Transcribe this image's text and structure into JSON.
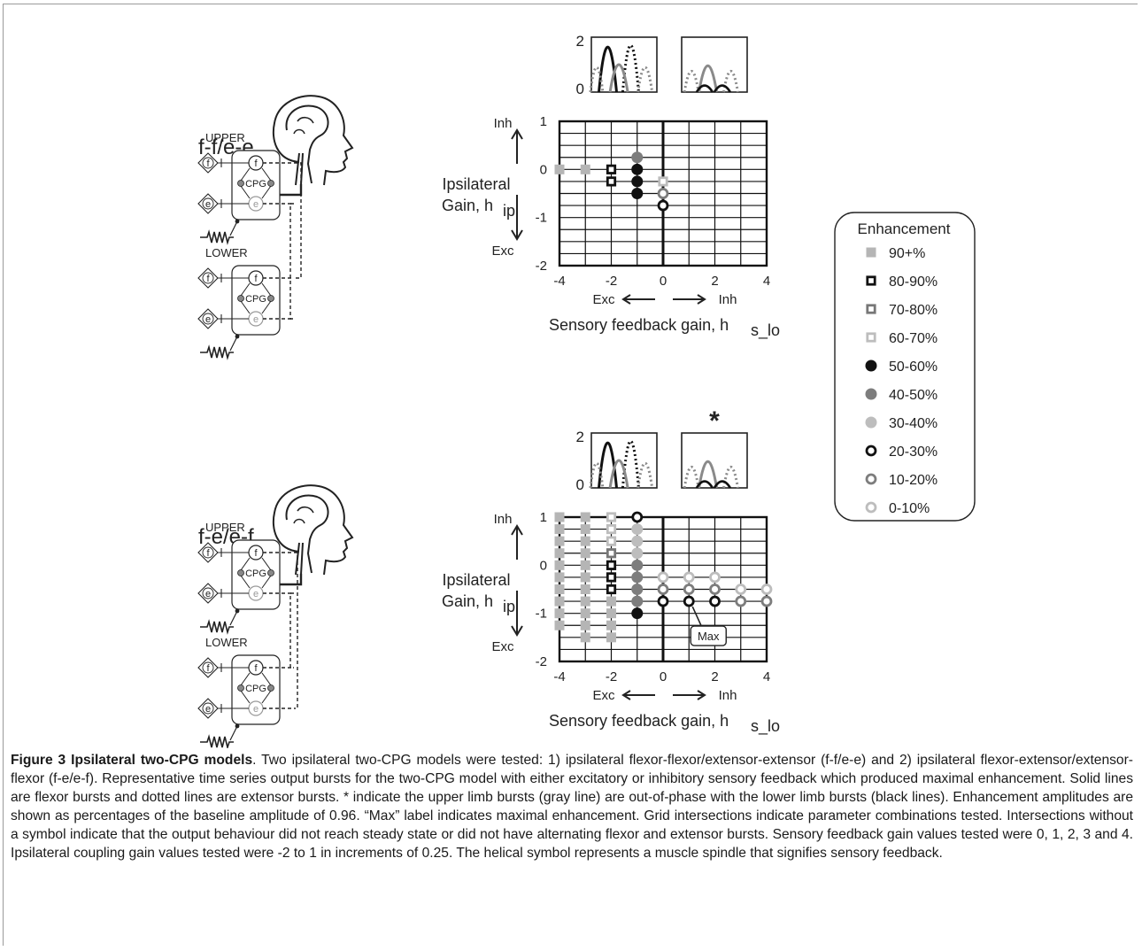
{
  "panels": [
    {
      "model_label": "f-f/e-e",
      "upper_label": "UPPER",
      "lower_label": "LOWER",
      "node_f": "f",
      "node_e": "e",
      "cpg_label": "CPG",
      "plot_y_max": "2",
      "plot_y_min": "0",
      "asterisk": "",
      "ylabel_line1": "Ipsilateral",
      "ylabel_line2": "Gain, h",
      "ylabel_sub": "ip",
      "inh_label": "Inh",
      "exc_label": "Exc",
      "xlabel": "Sensory feedback gain, h",
      "xlabel_sub": "s_lo",
      "x_exc": "Exc",
      "x_inh": "Inh",
      "xticks": [
        "-4",
        "-2",
        "0",
        "2",
        "4"
      ],
      "yticks": [
        "1",
        "0",
        "-1",
        "-2"
      ]
    },
    {
      "model_label": "f-e/e-f",
      "upper_label": "UPPER",
      "lower_label": "LOWER",
      "node_f": "f",
      "node_e": "e",
      "cpg_label": "CPG",
      "plot_y_max": "2",
      "plot_y_min": "0",
      "asterisk": "*",
      "ylabel_line1": "Ipsilateral",
      "ylabel_line2": "Gain, h",
      "ylabel_sub": "ip",
      "inh_label": "Inh",
      "exc_label": "Exc",
      "xlabel": "Sensory feedback gain, h",
      "xlabel_sub": "s_lo",
      "x_exc": "Exc",
      "x_inh": "Inh",
      "xticks": [
        "-4",
        "-2",
        "0",
        "2",
        "4"
      ],
      "yticks": [
        "1",
        "0",
        "-1",
        "-2"
      ],
      "max_label": "Max"
    }
  ],
  "legend": {
    "title": "Enhancement",
    "items": [
      {
        "label": "90+%",
        "marker": "square-filled",
        "color": "#b5b5b5"
      },
      {
        "label": "80-90%",
        "marker": "square-open",
        "color": "#111111"
      },
      {
        "label": "70-80%",
        "marker": "square-open",
        "color": "#777777"
      },
      {
        "label": "60-70%",
        "marker": "square-open",
        "color": "#bdbdbd"
      },
      {
        "label": "50-60%",
        "marker": "circle-filled",
        "color": "#111111"
      },
      {
        "label": "40-50%",
        "marker": "circle-filled",
        "color": "#7d7d7d"
      },
      {
        "label": "30-40%",
        "marker": "circle-filled",
        "color": "#bdbdbd"
      },
      {
        "label": "20-30%",
        "marker": "circle-open",
        "color": "#111111"
      },
      {
        "label": "10-20%",
        "marker": "circle-open",
        "color": "#7d7d7d"
      },
      {
        "label": "0-10%",
        "marker": "circle-open",
        "color": "#bdbdbd"
      }
    ]
  },
  "chart_data": [
    {
      "type": "scatter",
      "xlabel": "Sensory feedback gain, h_s_lo",
      "ylabel": "Ipsilateral Gain, h_ip",
      "xlim": [
        -4,
        4
      ],
      "ylim": [
        -2,
        1
      ],
      "points": [
        {
          "x": -4,
          "y": 0,
          "class": "90+%"
        },
        {
          "x": -3,
          "y": 0,
          "class": "90+%"
        },
        {
          "x": -2,
          "y": 0,
          "class": "80-90%"
        },
        {
          "x": -2,
          "y": -0.25,
          "class": "80-90%"
        },
        {
          "x": -1,
          "y": 0.25,
          "class": "40-50%"
        },
        {
          "x": -1,
          "y": 0,
          "class": "50-60%"
        },
        {
          "x": -1,
          "y": -0.25,
          "class": "50-60%"
        },
        {
          "x": -1,
          "y": -0.5,
          "class": "50-60%"
        },
        {
          "x": 0,
          "y": -0.25,
          "class": "60-70%"
        },
        {
          "x": 0,
          "y": -0.5,
          "class": "10-20%"
        },
        {
          "x": 0,
          "y": -0.75,
          "class": "20-30%"
        }
      ]
    },
    {
      "type": "scatter",
      "xlabel": "Sensory feedback gain, h_s_lo",
      "ylabel": "Ipsilateral Gain, h_ip",
      "xlim": [
        -4,
        4
      ],
      "ylim": [
        -2,
        1
      ],
      "max_point": {
        "x": 1,
        "y": -0.75
      },
      "points": [
        {
          "x": -4,
          "y": 1,
          "class": "90+%"
        },
        {
          "x": -4,
          "y": 0.75,
          "class": "90+%"
        },
        {
          "x": -4,
          "y": 0.5,
          "class": "90+%"
        },
        {
          "x": -4,
          "y": 0.25,
          "class": "90+%"
        },
        {
          "x": -4,
          "y": 0,
          "class": "90+%"
        },
        {
          "x": -4,
          "y": -0.25,
          "class": "90+%"
        },
        {
          "x": -4,
          "y": -0.5,
          "class": "90+%"
        },
        {
          "x": -4,
          "y": -0.75,
          "class": "90+%"
        },
        {
          "x": -4,
          "y": -1,
          "class": "90+%"
        },
        {
          "x": -4,
          "y": -1.25,
          "class": "90+%"
        },
        {
          "x": -3,
          "y": 1,
          "class": "90+%"
        },
        {
          "x": -3,
          "y": 0.75,
          "class": "90+%"
        },
        {
          "x": -3,
          "y": 0.5,
          "class": "90+%"
        },
        {
          "x": -3,
          "y": 0.25,
          "class": "90+%"
        },
        {
          "x": -3,
          "y": 0,
          "class": "90+%"
        },
        {
          "x": -3,
          "y": -0.25,
          "class": "90+%"
        },
        {
          "x": -3,
          "y": -0.5,
          "class": "90+%"
        },
        {
          "x": -3,
          "y": -0.75,
          "class": "90+%"
        },
        {
          "x": -3,
          "y": -1,
          "class": "90+%"
        },
        {
          "x": -3,
          "y": -1.25,
          "class": "90+%"
        },
        {
          "x": -3,
          "y": -1.5,
          "class": "90+%"
        },
        {
          "x": -2,
          "y": 1,
          "class": "60-70%"
        },
        {
          "x": -2,
          "y": 0.75,
          "class": "60-70%"
        },
        {
          "x": -2,
          "y": 0.5,
          "class": "60-70%"
        },
        {
          "x": -2,
          "y": 0.25,
          "class": "70-80%"
        },
        {
          "x": -2,
          "y": 0,
          "class": "80-90%"
        },
        {
          "x": -2,
          "y": -0.25,
          "class": "80-90%"
        },
        {
          "x": -2,
          "y": -0.5,
          "class": "80-90%"
        },
        {
          "x": -2,
          "y": -0.75,
          "class": "90+%"
        },
        {
          "x": -2,
          "y": -1,
          "class": "90+%"
        },
        {
          "x": -2,
          "y": -1.25,
          "class": "90+%"
        },
        {
          "x": -2,
          "y": -1.5,
          "class": "90+%"
        },
        {
          "x": -1,
          "y": 1,
          "class": "20-30%"
        },
        {
          "x": -1,
          "y": 0.75,
          "class": "30-40%"
        },
        {
          "x": -1,
          "y": 0.5,
          "class": "30-40%"
        },
        {
          "x": -1,
          "y": 0.25,
          "class": "30-40%"
        },
        {
          "x": -1,
          "y": 0,
          "class": "40-50%"
        },
        {
          "x": -1,
          "y": -0.25,
          "class": "40-50%"
        },
        {
          "x": -1,
          "y": -0.5,
          "class": "40-50%"
        },
        {
          "x": -1,
          "y": -0.75,
          "class": "40-50%"
        },
        {
          "x": -1,
          "y": -1,
          "class": "50-60%"
        },
        {
          "x": 0,
          "y": -0.25,
          "class": "0-10%"
        },
        {
          "x": 0,
          "y": -0.5,
          "class": "10-20%"
        },
        {
          "x": 0,
          "y": -0.75,
          "class": "20-30%"
        },
        {
          "x": 1,
          "y": -0.25,
          "class": "0-10%"
        },
        {
          "x": 1,
          "y": -0.5,
          "class": "10-20%"
        },
        {
          "x": 1,
          "y": -0.75,
          "class": "20-30%"
        },
        {
          "x": 2,
          "y": -0.25,
          "class": "0-10%"
        },
        {
          "x": 2,
          "y": -0.5,
          "class": "10-20%"
        },
        {
          "x": 2,
          "y": -0.75,
          "class": "20-30%"
        },
        {
          "x": 3,
          "y": -0.5,
          "class": "0-10%"
        },
        {
          "x": 3,
          "y": -0.75,
          "class": "10-20%"
        },
        {
          "x": 4,
          "y": -0.5,
          "class": "0-10%"
        },
        {
          "x": 4,
          "y": -0.75,
          "class": "10-20%"
        }
      ]
    }
  ],
  "caption": {
    "bold": "Figure 3 Ipsilateral two-CPG models",
    "text": ". Two ipsilateral two-CPG models were tested: 1) ipsilateral flexor-flexor/extensor-extensor (f-f/e-e) and 2) ipsilateral flexor-extensor/extensor-flexor (f-e/e-f). Representative time series output bursts for the two-CPG model with either excitatory or inhibitory sensory feedback which produced maximal enhancement. Solid lines are flexor bursts and dotted lines are extensor bursts. * indicate the upper limb bursts (gray line) are out-of-phase with the lower limb bursts (black lines). Enhancement amplitudes are shown as percentages of the baseline amplitude of 0.96. “Max” label indicates maximal enhancement. Grid intersections indicate parameter combinations tested. Intersections without a symbol indicate that the output behaviour did not reach steady state or did not have alternating flexor and extensor bursts. Sensory feedback gain values tested were 0, 1, 2, 3 and 4. Ipsilateral coupling gain values tested were -2 to 1 in increments of 0.25. The helical symbol represents a muscle spindle that signifies sensory feedback."
  }
}
